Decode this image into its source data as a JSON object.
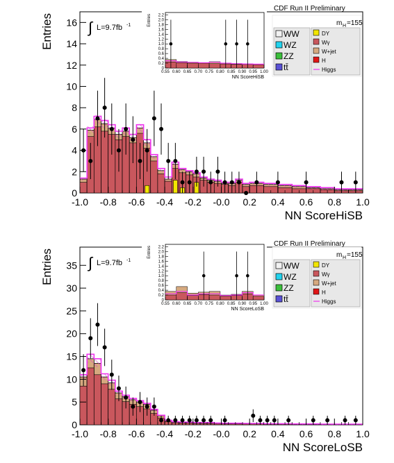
{
  "chart_data": [
    {
      "type": "bar",
      "xlabel": "NN ScoreHiSB",
      "ylabel": "Entries",
      "xlim": [
        -1.0,
        1.0
      ],
      "ylim": [
        0,
        17
      ],
      "yticks": [
        0,
        2,
        4,
        6,
        8,
        10,
        12,
        14,
        16
      ],
      "xticks": [
        "-1.0",
        "-0.8",
        "-0.6",
        "-0.4",
        "-0.2",
        "-0.0",
        "0.2",
        "0.4",
        "0.6",
        "0.8",
        "1.0"
      ],
      "lumi_label": "L=9.7fb",
      "lumi_sup": "-1",
      "header": "CDF Run II Preliminary",
      "mass_label": "m",
      "mass_sub": "H",
      "mass_value": "=155",
      "legend_left": [
        {
          "label": "WW",
          "color": "#f2f2f2"
        },
        {
          "label": "WZ",
          "color": "#22d3ee"
        },
        {
          "label": "ZZ",
          "color": "#3bbf3b"
        },
        {
          "label": "tt̄",
          "color": "#5a52d6"
        }
      ],
      "legend_right": [
        {
          "label": "DY",
          "color": "#f2e600"
        },
        {
          "label": "Wγ",
          "color": "#c9575d"
        },
        {
          "label": "W+jet",
          "color": "#d6a97f"
        },
        {
          "label": "H",
          "color": "#e01616"
        },
        {
          "label": "Higgs",
          "color": "#ee33ee"
        }
      ],
      "bin_edges": [
        -1.0,
        -0.95,
        -0.9,
        -0.85,
        -0.8,
        -0.75,
        -0.7,
        -0.65,
        -0.6,
        -0.55,
        -0.5,
        -0.45,
        -0.4,
        -0.35,
        -0.3,
        -0.25,
        -0.2,
        -0.15,
        -0.1,
        -0.05,
        0.0,
        0.05,
        0.1,
        0.15,
        0.2,
        0.3,
        0.4,
        0.5,
        0.6,
        0.7,
        0.8,
        0.9,
        1.0
      ],
      "stack_total": [
        1.3,
        5.9,
        6.9,
        6.5,
        6.1,
        5.5,
        5.8,
        5.2,
        6.1,
        4.7,
        3.4,
        2.1,
        1.3,
        2.7,
        2.2,
        2.0,
        1.8,
        1.4,
        1.2,
        1.1,
        0.9,
        0.9,
        1.2,
        0.8,
        0.9,
        0.8,
        0.7,
        0.6,
        0.5,
        0.4,
        0.3,
        0.3
      ],
      "series": [
        {
          "name": "Wγ",
          "values": [
            1.0,
            5.3,
            6.2,
            5.8,
            5.5,
            5.0,
            5.3,
            4.7,
            5.6,
            4.2,
            3.0,
            1.8,
            1.1,
            2.3,
            1.9,
            1.7,
            1.5,
            1.2,
            1.0,
            0.9,
            0.8,
            0.7,
            1.0,
            0.6,
            0.7,
            0.6,
            0.5,
            0.4,
            0.4,
            0.3,
            0.2,
            0.2
          ]
        },
        {
          "name": "DY",
          "values": [
            0,
            0,
            0,
            0,
            0,
            0,
            0,
            0,
            0,
            0.7,
            0,
            0,
            0,
            1.2,
            0.5,
            0,
            1.0,
            0,
            0,
            0,
            0,
            0,
            0,
            0,
            0,
            0,
            0,
            0,
            0,
            0,
            0,
            0
          ]
        }
      ],
      "higgs_curve": [
        1.4,
        6.1,
        7.2,
        6.8,
        6.4,
        5.8,
        6.1,
        5.5,
        6.4,
        5.0,
        3.6,
        2.3,
        1.5,
        2.9,
        2.3,
        2.1,
        1.9,
        1.5,
        1.3,
        1.2,
        1.0,
        1.0,
        1.3,
        0.9,
        1.0,
        0.9,
        0.8,
        0.7,
        0.6,
        0.5,
        0.4,
        0.4
      ],
      "data_points": [
        {
          "x": -0.975,
          "y": 4,
          "err": 2.0
        },
        {
          "x": -0.925,
          "y": 3,
          "err": 1.7
        },
        {
          "x": -0.875,
          "y": 7,
          "err": 2.6
        },
        {
          "x": -0.825,
          "y": 8,
          "err": 2.8
        },
        {
          "x": -0.775,
          "y": 6,
          "err": 2.4
        },
        {
          "x": -0.725,
          "y": 4,
          "err": 2.0
        },
        {
          "x": -0.675,
          "y": 6,
          "err": 2.4
        },
        {
          "x": -0.625,
          "y": 5,
          "err": 2.2
        },
        {
          "x": -0.575,
          "y": 3,
          "err": 1.7
        },
        {
          "x": -0.525,
          "y": 4,
          "err": 2.0
        },
        {
          "x": -0.475,
          "y": 7,
          "err": 2.6
        },
        {
          "x": -0.425,
          "y": 6,
          "err": 2.4
        },
        {
          "x": -0.375,
          "y": 3,
          "err": 1.7
        },
        {
          "x": -0.325,
          "y": 3,
          "err": 1.7
        },
        {
          "x": -0.275,
          "y": 1,
          "err": 1.0
        },
        {
          "x": -0.225,
          "y": 1,
          "err": 1.0
        },
        {
          "x": -0.175,
          "y": 2,
          "err": 1.4
        },
        {
          "x": -0.125,
          "y": 2,
          "err": 1.4
        },
        {
          "x": -0.075,
          "y": 1,
          "err": 1.0
        },
        {
          "x": -0.025,
          "y": 2,
          "err": 1.4
        },
        {
          "x": 0.025,
          "y": 1,
          "err": 1.0
        },
        {
          "x": 0.075,
          "y": 1,
          "err": 1.0
        },
        {
          "x": 0.125,
          "y": 1,
          "err": 1.0
        },
        {
          "x": 0.175,
          "y": 0,
          "err": 0
        },
        {
          "x": 0.25,
          "y": 1,
          "err": 1.0
        },
        {
          "x": 0.4,
          "y": 1,
          "err": 1.0
        },
        {
          "x": 0.6,
          "y": 1,
          "err": 1.0
        },
        {
          "x": 0.85,
          "y": 1,
          "err": 1.0
        },
        {
          "x": 0.95,
          "y": 1,
          "err": 1.0
        }
      ],
      "inset": {
        "xlabel": "NN ScoreHiSB",
        "ylabel": "Entries",
        "xlim": [
          0.55,
          1.0
        ],
        "ylim": [
          0,
          2.3
        ],
        "yticks": [
          "0",
          "0.2",
          "0.4",
          "0.6",
          "0.8",
          "1.0",
          "1.2",
          "1.4",
          "1.6",
          "1.8",
          "2.0",
          "2.2"
        ],
        "xticks": [
          "0.55",
          "0.60",
          "0.65",
          "0.70",
          "0.75",
          "0.80",
          "0.85",
          "0.90",
          "0.95",
          "1.00"
        ],
        "bin_edges": [
          0.55,
          0.6,
          0.65,
          0.7,
          0.75,
          0.8,
          0.85,
          0.9,
          0.95,
          1.0
        ],
        "wg": [
          0.25,
          0.22,
          0.2,
          0.2,
          0.18,
          0.17,
          0.15,
          0.15,
          0.14
        ],
        "wjet": [
          0.1,
          0.05,
          0.03,
          0.02,
          0.08,
          0.02,
          0.02,
          0.02,
          0.02
        ],
        "higgs_curve": [
          0.3,
          0.25,
          0.24,
          0.22,
          0.24,
          0.2,
          0.18,
          0.17,
          0.16
        ],
        "data_points": [
          {
            "x": 0.575,
            "y": 1,
            "err": 1.0
          },
          {
            "x": 0.825,
            "y": 1,
            "err": 1.0
          },
          {
            "x": 0.875,
            "y": 1,
            "err": 1.0
          },
          {
            "x": 0.925,
            "y": 1,
            "err": 1.0
          }
        ]
      }
    },
    {
      "type": "bar",
      "xlabel": "NN ScoreLoSB",
      "ylabel": "Entries",
      "xlim": [
        -1.0,
        1.0
      ],
      "ylim": [
        0,
        39
      ],
      "yticks": [
        0,
        5,
        10,
        15,
        20,
        25,
        30,
        35
      ],
      "xticks": [
        "-1.0",
        "-0.8",
        "-0.6",
        "-0.4",
        "-0.2",
        "-0.0",
        "0.2",
        "0.4",
        "0.6",
        "0.8",
        "1.0"
      ],
      "lumi_label": "L=9.7fb",
      "lumi_sup": "-1",
      "header": "CDF Run II Preliminary",
      "mass_label": "m",
      "mass_sub": "H",
      "mass_value": "=155",
      "legend_left": [
        {
          "label": "WW",
          "color": "#f2f2f2"
        },
        {
          "label": "WZ",
          "color": "#22d3ee"
        },
        {
          "label": "ZZ",
          "color": "#3bbf3b"
        },
        {
          "label": "tt̄",
          "color": "#5a52d6"
        }
      ],
      "legend_right": [
        {
          "label": "DY",
          "color": "#f2e600"
        },
        {
          "label": "Wγ",
          "color": "#c9575d"
        },
        {
          "label": "W+jet",
          "color": "#d6a97f"
        },
        {
          "label": "H",
          "color": "#e01616"
        },
        {
          "label": "Higgs",
          "color": "#ee33ee"
        }
      ],
      "bin_edges": [
        -1.0,
        -0.95,
        -0.9,
        -0.85,
        -0.8,
        -0.75,
        -0.7,
        -0.65,
        -0.6,
        -0.55,
        -0.5,
        -0.45,
        -0.4,
        -0.35,
        -0.3,
        -0.25,
        -0.2,
        -0.15,
        -0.1,
        -0.05,
        0.0,
        0.05,
        0.1,
        0.15,
        0.2,
        0.3,
        0.4,
        0.5,
        0.6,
        0.7,
        0.8,
        0.9,
        1.0
      ],
      "stack_total": [
        10.5,
        14.5,
        13.5,
        10.5,
        9.2,
        7.0,
        6.2,
        5.5,
        5.0,
        4.5,
        3.2,
        2.0,
        0.9,
        0.6,
        0.5,
        0.5,
        0.4,
        0.4,
        0.4,
        0.35,
        0.3,
        0.3,
        0.3,
        0.25,
        0.25,
        0.2,
        0.2,
        0.15,
        0.15,
        0.1,
        0.1,
        0.1
      ],
      "series": [
        {
          "name": "Wγ",
          "values": [
            8.5,
            12.5,
            11.0,
            9.0,
            7.8,
            5.7,
            5.1,
            4.5,
            4.0,
            3.5,
            2.5,
            1.5,
            0.7,
            0.45,
            0.4,
            0.4,
            0.3,
            0.3,
            0.3,
            0.25,
            0.2,
            0.2,
            0.2,
            0.2,
            0.2,
            0.15,
            0.15,
            0.1,
            0.1,
            0.08,
            0.08,
            0.08
          ]
        },
        {
          "name": "DY",
          "values": [
            0,
            0,
            0,
            0,
            0,
            0,
            0,
            0,
            0,
            0,
            0,
            0,
            0,
            0,
            0,
            0,
            0,
            0,
            0,
            0,
            0,
            0,
            0,
            0,
            0,
            0,
            0,
            0,
            0,
            0,
            0,
            0
          ]
        }
      ],
      "higgs_curve": [
        11.0,
        15.5,
        14.5,
        11.2,
        9.8,
        7.4,
        6.5,
        5.8,
        5.3,
        4.7,
        3.4,
        2.1,
        1.0,
        0.7,
        0.6,
        0.6,
        0.5,
        0.5,
        0.5,
        0.4,
        0.35,
        0.35,
        0.35,
        0.3,
        0.3,
        0.25,
        0.25,
        0.2,
        0.2,
        0.15,
        0.15,
        0.15
      ],
      "data_points": [
        {
          "x": -0.975,
          "y": 12,
          "err": 3.5
        },
        {
          "x": -0.925,
          "y": 19,
          "err": 4.4
        },
        {
          "x": -0.875,
          "y": 22,
          "err": 4.7
        },
        {
          "x": -0.825,
          "y": 17,
          "err": 4.1
        },
        {
          "x": -0.775,
          "y": 11,
          "err": 3.3
        },
        {
          "x": -0.725,
          "y": 8,
          "err": 2.8
        },
        {
          "x": -0.675,
          "y": 6,
          "err": 2.4
        },
        {
          "x": -0.625,
          "y": 4,
          "err": 2.0
        },
        {
          "x": -0.575,
          "y": 5,
          "err": 2.2
        },
        {
          "x": -0.525,
          "y": 4,
          "err": 2.0
        },
        {
          "x": -0.475,
          "y": 4,
          "err": 2.0
        },
        {
          "x": -0.425,
          "y": 1,
          "err": 1.0
        },
        {
          "x": -0.375,
          "y": 1,
          "err": 1.0
        },
        {
          "x": -0.325,
          "y": 1,
          "err": 1.0
        },
        {
          "x": -0.275,
          "y": 1,
          "err": 1.0
        },
        {
          "x": -0.225,
          "y": 1,
          "err": 1.0
        },
        {
          "x": -0.175,
          "y": 1,
          "err": 1.0
        },
        {
          "x": -0.125,
          "y": 1,
          "err": 1.0
        },
        {
          "x": -0.075,
          "y": 1,
          "err": 1.0
        },
        {
          "x": 0.025,
          "y": 1,
          "err": 1.0
        },
        {
          "x": 0.225,
          "y": 2,
          "err": 1.4
        },
        {
          "x": 0.275,
          "y": 1,
          "err": 1.0
        },
        {
          "x": 0.325,
          "y": 1,
          "err": 1.0
        },
        {
          "x": 0.375,
          "y": 1,
          "err": 1.0
        },
        {
          "x": 0.475,
          "y": 1,
          "err": 1.0
        },
        {
          "x": 0.65,
          "y": 1,
          "err": 1.0
        },
        {
          "x": 0.75,
          "y": 1,
          "err": 1.0
        },
        {
          "x": 0.875,
          "y": 1,
          "err": 1.0
        },
        {
          "x": 0.95,
          "y": 1,
          "err": 1.0
        }
      ],
      "inset": {
        "xlabel": "NN ScoreLoSB",
        "ylabel": "Entries",
        "xlim": [
          0.55,
          1.0
        ],
        "ylim": [
          0,
          2.3
        ],
        "yticks": [
          "0",
          "0.2",
          "0.4",
          "0.6",
          "0.8",
          "1.0",
          "1.2",
          "1.4",
          "1.6",
          "1.8",
          "2.0",
          "2.2"
        ],
        "xticks": [
          "0.55",
          "0.60",
          "0.65",
          "0.70",
          "0.75",
          "0.80",
          "0.85",
          "0.90",
          "0.95",
          "1.00"
        ],
        "bin_edges": [
          0.55,
          0.6,
          0.65,
          0.7,
          0.75,
          0.8,
          0.85,
          0.9,
          0.95,
          1.0
        ],
        "wg": [
          0.2,
          0.3,
          0.18,
          0.22,
          0.2,
          0.15,
          0.18,
          0.25,
          0.15
        ],
        "wjet": [
          0.15,
          0.25,
          0.1,
          0.1,
          0.15,
          0.05,
          0.05,
          0.1,
          0.05
        ],
        "higgs_curve": [
          0.25,
          0.35,
          0.2,
          0.25,
          0.25,
          0.18,
          0.2,
          0.3,
          0.2
        ],
        "data_points": [
          {
            "x": 0.725,
            "y": 1,
            "err": 1.0
          },
          {
            "x": 0.875,
            "y": 1,
            "err": 1.0
          },
          {
            "x": 0.925,
            "y": 1,
            "err": 1.0
          }
        ]
      }
    }
  ]
}
